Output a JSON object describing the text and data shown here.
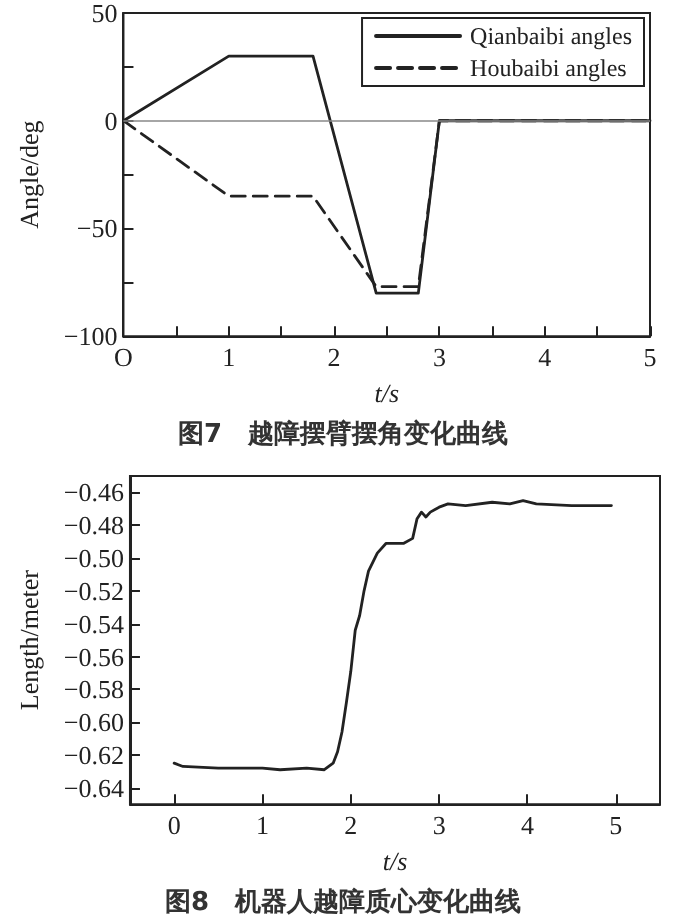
{
  "chart_data": [
    {
      "type": "line",
      "xlabel": "t/s",
      "ylabel": "Angle/deg",
      "annotations": [
        "图7　越障摆臂摆角变化曲线"
      ],
      "xlim": [
        0,
        5
      ],
      "ylim": [
        -100,
        50
      ],
      "xticks": [
        {
          "value": 0,
          "label": "O"
        },
        {
          "value": 0.5,
          "label": null
        },
        1,
        {
          "value": 1.5,
          "label": null
        },
        2,
        {
          "value": 2.5,
          "label": null
        },
        3,
        {
          "value": 3.5,
          "label": null
        },
        4,
        {
          "value": 4.5,
          "label": null
        },
        5
      ],
      "yticks": [
        -100,
        {
          "value": -75,
          "label": null
        },
        -50,
        {
          "value": -25,
          "label": null
        },
        0,
        {
          "value": 25,
          "label": null
        },
        50
      ],
      "ref_lines": [
        {
          "axis": "y",
          "value": 0,
          "color": "#888888"
        }
      ],
      "legend": "top right",
      "grid": false,
      "marker": "none",
      "series": [
        {
          "name": "Qianbaibi angles",
          "color": "#222222",
          "line_style": "solid",
          "x": [
            0,
            1,
            1.8,
            2.4,
            2.8,
            3,
            5
          ],
          "values": [
            0,
            30,
            30,
            -80,
            -80,
            0,
            0
          ]
        },
        {
          "name": "Houbaibi angles",
          "color": "#222222",
          "line_style": "dashed",
          "x": [
            0,
            1,
            1.8,
            2.4,
            2.8,
            3,
            5
          ],
          "values": [
            0,
            -35,
            -35,
            -77,
            -77,
            0,
            0
          ]
        }
      ]
    },
    {
      "type": "line",
      "xlabel": "t/s",
      "ylabel": "Length/meter",
      "annotations": [
        "图8　机器人越障质心变化曲线"
      ],
      "xlim": [
        -0.5,
        5.5
      ],
      "ylim": [
        -0.65,
        -0.45
      ],
      "xticks": [
        0,
        1,
        2,
        3,
        4,
        5
      ],
      "yticks": [
        -0.64,
        -0.62,
        {
          "value": -0.6,
          "label": "−0.60"
        },
        -0.58,
        -0.56,
        -0.54,
        -0.52,
        {
          "value": -0.5,
          "label": "−0.50"
        },
        -0.48,
        -0.46
      ],
      "grid": false,
      "marker": "none",
      "legend": false,
      "series": [
        {
          "color": "#222222",
          "line_style": "solid",
          "x": [
            0,
            0.1,
            0.5,
            1,
            1.2,
            1.5,
            1.7,
            1.8,
            1.85,
            1.9,
            1.95,
            2,
            2.05,
            2.1,
            2.15,
            2.2,
            2.3,
            2.4,
            2.6,
            2.7,
            2.75,
            2.8,
            2.85,
            2.9,
            3,
            3.1,
            3.3,
            3.6,
            3.8,
            3.95,
            4.1,
            4.5,
            4.95
          ],
          "values": [
            -0.625,
            -0.627,
            -0.628,
            -0.628,
            -0.629,
            -0.628,
            -0.629,
            -0.625,
            -0.618,
            -0.606,
            -0.588,
            -0.569,
            -0.544,
            -0.535,
            -0.52,
            -0.508,
            -0.497,
            -0.491,
            -0.491,
            -0.488,
            -0.476,
            -0.472,
            -0.475,
            -0.472,
            -0.469,
            -0.467,
            -0.468,
            -0.466,
            -0.467,
            -0.465,
            -0.467,
            -0.468,
            -0.468
          ]
        }
      ]
    }
  ]
}
